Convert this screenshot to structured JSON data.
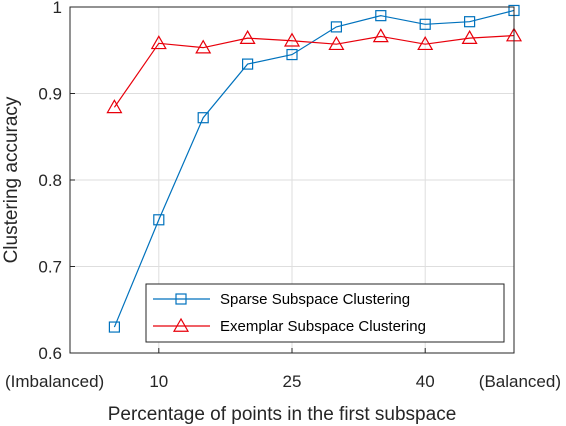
{
  "chart_data": {
    "type": "line",
    "title": "",
    "xlabel": "Percentage of points in the first subspace",
    "ylabel": "Clustering accuracy",
    "xlim": [
      0,
      50
    ],
    "ylim": [
      0.6,
      1.0
    ],
    "x_ticks": [
      {
        "value": 0,
        "label": "(Imbalanced)"
      },
      {
        "value": 10,
        "label": "10"
      },
      {
        "value": 25,
        "label": "25"
      },
      {
        "value": 40,
        "label": "40"
      },
      {
        "value": 50,
        "label": "(Balanced)"
      }
    ],
    "y_ticks": [
      {
        "value": 0.6,
        "label": "0.6"
      },
      {
        "value": 0.7,
        "label": "0.7"
      },
      {
        "value": 0.8,
        "label": "0.8"
      },
      {
        "value": 0.9,
        "label": "0.9"
      },
      {
        "value": 1.0,
        "label": "1"
      }
    ],
    "grid": true,
    "legend_position": "bottom-right",
    "series": [
      {
        "name": "Sparse Subspace Clustering",
        "color": "#0072BD",
        "marker": "square",
        "x": [
          5,
          10,
          15,
          20,
          25,
          30,
          35,
          40,
          45,
          50
        ],
        "y": [
          0.63,
          0.754,
          0.872,
          0.934,
          0.945,
          0.977,
          0.99,
          0.98,
          0.983,
          0.996
        ]
      },
      {
        "name": "Exemplar Subspace Clustering",
        "color": "#E8000B",
        "marker": "triangle",
        "x": [
          5,
          10,
          15,
          20,
          25,
          30,
          35,
          40,
          45,
          50
        ],
        "y": [
          0.884,
          0.958,
          0.953,
          0.964,
          0.961,
          0.957,
          0.966,
          0.957,
          0.964,
          0.967
        ]
      }
    ]
  }
}
